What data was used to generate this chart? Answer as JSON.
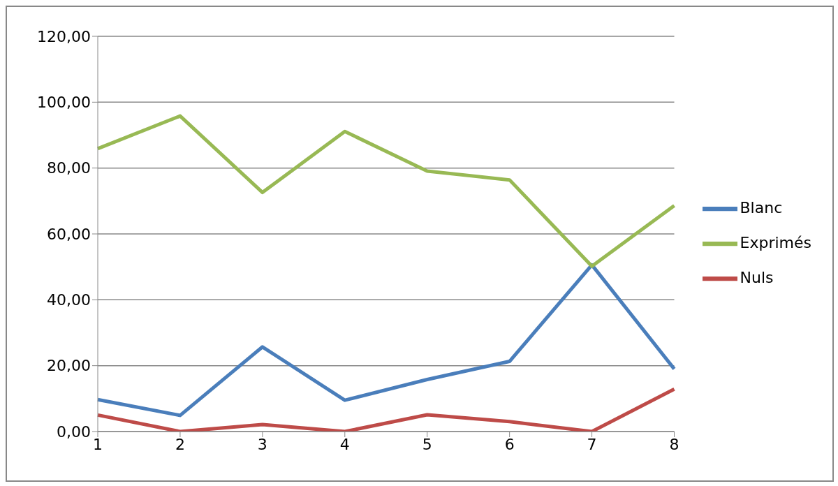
{
  "chart_data": {
    "type": "line",
    "categories": [
      "1",
      "2",
      "3",
      "4",
      "5",
      "6",
      "7",
      "8"
    ],
    "series": [
      {
        "name": "Blanc",
        "color": "#4a7ebb",
        "values": [
          9.7,
          4.9,
          25.7,
          9.5,
          15.8,
          21.3,
          50.6,
          19.0
        ]
      },
      {
        "name": "Nuls",
        "color": "#be4b48",
        "values": [
          5.0,
          0.0,
          2.1,
          0.0,
          5.1,
          3.0,
          0.0,
          12.9
        ]
      },
      {
        "name": "Exprimés",
        "color": "#98b954",
        "values": [
          85.9,
          95.8,
          72.6,
          91.1,
          79.1,
          76.4,
          50.2,
          68.6
        ]
      }
    ],
    "ylim": [
      0,
      120
    ],
    "yticks": [
      {
        "value": 0,
        "label": "0,00"
      },
      {
        "value": 20,
        "label": "20,00"
      },
      {
        "value": 40,
        "label": "40,00"
      },
      {
        "value": 60,
        "label": "60,00"
      },
      {
        "value": 80,
        "label": "80,00"
      },
      {
        "value": 100,
        "label": "100,00"
      },
      {
        "value": 120,
        "label": "120,00"
      }
    ],
    "grid": "y",
    "legend": "right",
    "marker": "none",
    "line_style": "solid"
  }
}
